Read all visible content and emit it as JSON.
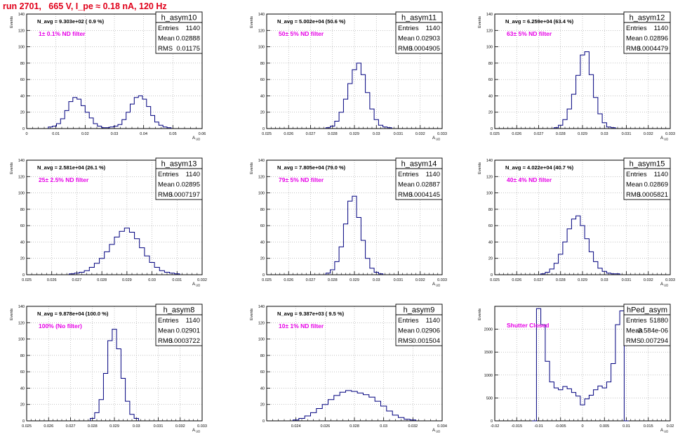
{
  "page_title": "run 2701,   665 V, I_pe ≈ 0.18 nA, 120 Hz",
  "style": {
    "hist_color": "#00007f",
    "annotation_color": "#e600e6",
    "title_color": "#e0001a",
    "grid_color": "#a0a0a0"
  },
  "chart_data": [
    {
      "type": "histogram",
      "title": "h_asym10",
      "ylabel": "Events",
      "xlabel": "A_UD",
      "stats": {
        "entries": "1140",
        "mean": "0.02888",
        "rms": "0.01175"
      },
      "navg": "N_avg = 9.303e+02 ( 0.9 %)",
      "annotation": "1± 0.1% ND filter",
      "xlim": [
        0,
        0.06
      ],
      "xticks": [
        "0",
        "0.01",
        "0.02",
        "0.03",
        "0.04",
        "0.05",
        "0.06"
      ],
      "ylim": [
        0,
        140
      ],
      "yticks": [
        "0",
        "20",
        "40",
        "60",
        "80",
        "100",
        "120",
        "140"
      ],
      "x": [
        0.0081,
        0.0095,
        0.0109,
        0.0123,
        0.0137,
        0.0151,
        0.0165,
        0.0179,
        0.0193,
        0.0207,
        0.0221,
        0.0235,
        0.0249,
        0.0263,
        0.0277,
        0.0291,
        0.0305,
        0.0319,
        0.0333,
        0.0347,
        0.0361,
        0.0375,
        0.0389,
        0.0403,
        0.0417,
        0.0431,
        0.0445,
        0.0459,
        0.0473,
        0.0487
      ],
      "values": [
        2,
        3,
        6,
        12,
        22,
        33,
        38,
        36,
        28,
        20,
        13,
        6,
        3,
        1,
        1,
        2,
        3,
        5,
        11,
        20,
        30,
        38,
        40,
        36,
        27,
        16,
        8,
        4,
        2,
        1
      ]
    },
    {
      "type": "histogram",
      "title": "h_asym11",
      "ylabel": "Events",
      "xlabel": "A_UD",
      "stats": {
        "entries": "1140",
        "mean": "0.02903",
        "rms": "0.0004905"
      },
      "navg": "N_avg = 5.002e+04 (50.6 %)",
      "annotation": "50± 5% ND filter",
      "xlim": [
        0.025,
        0.033
      ],
      "xticks": [
        "0.025",
        "0.026",
        "0.027",
        "0.028",
        "0.029",
        "0.03",
        "0.031",
        "0.032",
        "0.033"
      ],
      "ylim": [
        0,
        140
      ],
      "yticks": [
        "0",
        "20",
        "40",
        "60",
        "80",
        "100",
        "120",
        "140"
      ],
      "x": [
        0.0278,
        0.028,
        0.0282,
        0.0284,
        0.0286,
        0.0288,
        0.029,
        0.0292,
        0.0294,
        0.0296,
        0.0298,
        0.03,
        0.0302,
        0.0304,
        0.0306
      ],
      "values": [
        1,
        3,
        9,
        20,
        36,
        55,
        72,
        80,
        66,
        44,
        24,
        11,
        4,
        2,
        1
      ]
    },
    {
      "type": "histogram",
      "title": "h_asym12",
      "ylabel": "Events",
      "xlabel": "A_UD",
      "stats": {
        "entries": "1140",
        "mean": "0.02896",
        "rms": "0.0004479"
      },
      "navg": "N_avg = 6.259e+04 (63.4 %)",
      "annotation": "63± 5% ND filter",
      "xlim": [
        0.025,
        0.033
      ],
      "xticks": [
        "0.025",
        "0.026",
        "0.027",
        "0.028",
        "0.029",
        "0.03",
        "0.031",
        "0.032",
        "0.033"
      ],
      "ylim": [
        0,
        140
      ],
      "yticks": [
        "0",
        "20",
        "40",
        "60",
        "80",
        "100",
        "120",
        "140"
      ],
      "x": [
        0.0278,
        0.028,
        0.0282,
        0.0284,
        0.0286,
        0.0288,
        0.029,
        0.0292,
        0.0294,
        0.0296,
        0.0298,
        0.03,
        0.0302,
        0.0304
      ],
      "values": [
        1,
        4,
        11,
        24,
        42,
        65,
        90,
        94,
        66,
        38,
        18,
        7,
        2,
        1
      ]
    },
    {
      "type": "histogram",
      "title": "h_asym13",
      "ylabel": "Events",
      "xlabel": "A_UD",
      "stats": {
        "entries": "1140",
        "mean": "0.02895",
        "rms": "0.0007197"
      },
      "navg": "N_avg = 2.581e+04 (26.1 %)",
      "annotation": "25± 2.5% ND filter",
      "xlim": [
        0.025,
        0.032
      ],
      "xticks": [
        "0.025",
        "0.026",
        "0.027",
        "0.028",
        "0.029",
        "0.03",
        "0.031",
        "0.032"
      ],
      "ylim": [
        0,
        140
      ],
      "yticks": [
        "0",
        "20",
        "40",
        "60",
        "80",
        "100",
        "120",
        "140"
      ],
      "x": [
        0.0268,
        0.027,
        0.0272,
        0.0274,
        0.0276,
        0.0278,
        0.028,
        0.0282,
        0.0284,
        0.0286,
        0.0288,
        0.029,
        0.0292,
        0.0294,
        0.0296,
        0.0298,
        0.03,
        0.0302,
        0.0304,
        0.0306,
        0.0308,
        0.031
      ],
      "values": [
        1,
        2,
        3,
        5,
        9,
        14,
        20,
        28,
        37,
        46,
        53,
        57,
        52,
        44,
        33,
        23,
        15,
        9,
        5,
        3,
        2,
        1
      ]
    },
    {
      "type": "histogram",
      "title": "h_asym14",
      "ylabel": "Events",
      "xlabel": "A_UD",
      "stats": {
        "entries": "1140",
        "mean": "0.02887",
        "rms": "0.0004145"
      },
      "navg": "N_avg = 7.805e+04 (79.0 %)",
      "annotation": "79± 5% ND filter",
      "xlim": [
        0.025,
        0.033
      ],
      "xticks": [
        "0.025",
        "0.026",
        "0.027",
        "0.028",
        "0.029",
        "0.03",
        "0.031",
        "0.032",
        "0.033"
      ],
      "ylim": [
        0,
        140
      ],
      "yticks": [
        "0",
        "20",
        "40",
        "60",
        "80",
        "100",
        "120",
        "140"
      ],
      "x": [
        0.0278,
        0.028,
        0.0282,
        0.0284,
        0.0286,
        0.0288,
        0.029,
        0.0292,
        0.0294,
        0.0296,
        0.0298,
        0.03,
        0.0302
      ],
      "values": [
        2,
        6,
        16,
        34,
        62,
        90,
        96,
        70,
        42,
        20,
        8,
        3,
        1
      ]
    },
    {
      "type": "histogram",
      "title": "h_asym15",
      "ylabel": "Events",
      "xlabel": "A_UD",
      "stats": {
        "entries": "1140",
        "mean": "0.02869",
        "rms": "0.0005821"
      },
      "navg": "N_avg = 4.022e+04 (40.7 %)",
      "annotation": "40± 4% ND filter",
      "xlim": [
        0.025,
        0.033
      ],
      "xticks": [
        "0.025",
        "0.026",
        "0.027",
        "0.028",
        "0.029",
        "0.03",
        "0.031",
        "0.032",
        "0.033"
      ],
      "ylim": [
        0,
        140
      ],
      "yticks": [
        "0",
        "20",
        "40",
        "60",
        "80",
        "100",
        "120",
        "140"
      ],
      "x": [
        0.0272,
        0.0274,
        0.0276,
        0.0278,
        0.028,
        0.0282,
        0.0284,
        0.0286,
        0.0288,
        0.029,
        0.0292,
        0.0294,
        0.0296,
        0.0298,
        0.03,
        0.0302,
        0.0304,
        0.0306
      ],
      "values": [
        1,
        3,
        7,
        14,
        25,
        40,
        56,
        68,
        72,
        60,
        44,
        28,
        16,
        8,
        4,
        2,
        1,
        1
      ]
    },
    {
      "type": "histogram",
      "title": "h_asym8",
      "ylabel": "Events",
      "xlabel": "A_UD",
      "stats": {
        "entries": "1140",
        "mean": "0.02901",
        "rms": "0.0003722"
      },
      "navg": "N_avg = 9.878e+04 (100.0 %)",
      "annotation": "100% (No filter)",
      "xlim": [
        0.025,
        0.033
      ],
      "xticks": [
        "0.025",
        "0.026",
        "0.027",
        "0.028",
        "0.029",
        "0.03",
        "0.031",
        "0.032",
        "0.033"
      ],
      "ylim": [
        0,
        140
      ],
      "yticks": [
        "0",
        "20",
        "40",
        "60",
        "80",
        "100",
        "120",
        "140"
      ],
      "x": [
        0.028,
        0.0282,
        0.0284,
        0.0286,
        0.0288,
        0.029,
        0.0292,
        0.0294,
        0.0296,
        0.0298,
        0.03
      ],
      "values": [
        3,
        10,
        26,
        58,
        98,
        112,
        88,
        52,
        24,
        8,
        3
      ]
    },
    {
      "type": "histogram",
      "title": "h_asym9",
      "ylabel": "Events",
      "xlabel": "A_UD",
      "stats": {
        "entries": "1140",
        "mean": "0.02906",
        "rms": "0.001504"
      },
      "navg": "N_avg = 9.387e+03 ( 9.5 %)",
      "annotation": "10± 1% ND filter",
      "xlim": [
        0.023,
        0.035
      ],
      "xticks": [
        "",
        "0.024",
        "0.026",
        "0.028",
        "0.03",
        "0.032",
        "0.034"
      ],
      "ylim": [
        0,
        140
      ],
      "yticks": [
        "0",
        "20",
        "40",
        "60",
        "80",
        "100",
        "120",
        "140"
      ],
      "x": [
        0.025,
        0.0254,
        0.0258,
        0.0262,
        0.0266,
        0.027,
        0.0274,
        0.0278,
        0.0282,
        0.0286,
        0.029,
        0.0294,
        0.0298,
        0.0302,
        0.0306,
        0.031,
        0.0314,
        0.0318,
        0.0322,
        0.0326,
        0.033
      ],
      "values": [
        1,
        3,
        6,
        10,
        15,
        20,
        26,
        31,
        35,
        37,
        36,
        34,
        32,
        29,
        24,
        18,
        12,
        7,
        4,
        2,
        1
      ]
    },
    {
      "type": "histogram",
      "title": "hPed_asym",
      "ylabel": "Events",
      "xlabel": "A_UD",
      "stats": {
        "entries": "51880",
        "mean": "-3.584e-06",
        "rms": "0.007294"
      },
      "navg": "",
      "annotation": "Shutter Closed",
      "xlim": [
        -0.02,
        0.02
      ],
      "xticks": [
        "-0.02",
        "-0.015",
        "-0.01",
        "-0.005",
        "0",
        "0.005",
        "0.01",
        "0.015",
        "0.02"
      ],
      "ylim": [
        0,
        2500
      ],
      "yticks": [
        "0",
        "500",
        "1000",
        "1500",
        "2000"
      ],
      "x": [
        -0.011,
        -0.01,
        -0.009,
        -0.008,
        -0.007,
        -0.006,
        -0.005,
        -0.004,
        -0.003,
        -0.002,
        -0.001,
        0.0,
        0.001,
        0.002,
        0.003,
        0.004,
        0.005,
        0.006,
        0.007,
        0.008,
        0.009,
        0.01
      ],
      "values": [
        0,
        2450,
        2100,
        1300,
        850,
        720,
        680,
        750,
        700,
        620,
        540,
        350,
        480,
        560,
        680,
        760,
        720,
        850,
        1250,
        2100,
        2400,
        0
      ]
    }
  ]
}
